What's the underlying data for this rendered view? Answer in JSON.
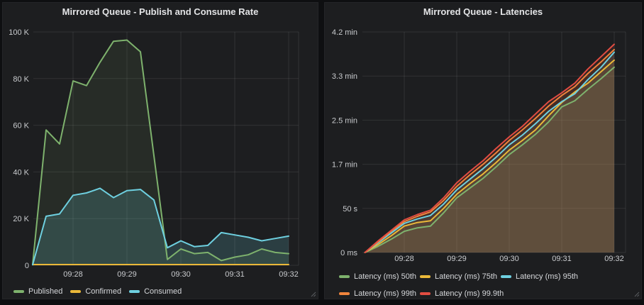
{
  "page": {
    "bg_color": "#0e0f11",
    "panel_bg_color": "#1d1e20",
    "grid_color": "rgba(255,255,255,0.09)",
    "axis_text_color": "#c9cbce",
    "title_text_color": "#e3e4e6",
    "legend_text_color": "#d5d7da"
  },
  "chart_data": [
    {
      "type": "area",
      "title": "Mirrored Queue - Publish and Consume Rate",
      "xlabel": "",
      "ylabel": "",
      "ylim": [
        0,
        100000
      ],
      "y_tick_values": [
        0,
        20000,
        40000,
        60000,
        80000,
        100000
      ],
      "y_tick_labels": [
        "0",
        "20 K",
        "40 K",
        "60 K",
        "80 K",
        "100 K"
      ],
      "x_tick_minutes": [
        28,
        29,
        30,
        31,
        32
      ],
      "x_tick_labels": [
        "09:28",
        "09:29",
        "09:30",
        "09:31",
        "09:32"
      ],
      "x_minutes": [
        27.25,
        27.5,
        27.75,
        28,
        28.25,
        28.5,
        28.75,
        29,
        29.25,
        29.5,
        29.75,
        30,
        30.25,
        30.5,
        30.75,
        31,
        31.25,
        31.5,
        31.75,
        32
      ],
      "grid": true,
      "legend_position": "bottom",
      "series": [
        {
          "name": "Published",
          "color": "#7EB26D",
          "fill_opacity": 0.1,
          "values": [
            300,
            58000,
            52000,
            79000,
            77000,
            87000,
            96000,
            96500,
            91500,
            47000,
            2500,
            7000,
            5000,
            5500,
            2000,
            3500,
            4500,
            7000,
            5500,
            5000
          ]
        },
        {
          "name": "Confirmed",
          "color": "#EAB839",
          "fill_opacity": 0.1,
          "values": [
            300,
            300,
            300,
            300,
            300,
            300,
            300,
            300,
            300,
            300,
            300,
            300,
            300,
            300,
            300,
            300,
            300,
            300,
            300,
            300
          ]
        },
        {
          "name": "Consumed",
          "color": "#6ED0E0",
          "fill_opacity": 0.18,
          "values": [
            200,
            21000,
            22000,
            30000,
            31000,
            33000,
            29000,
            32000,
            32500,
            28000,
            7500,
            10500,
            8000,
            8500,
            14000,
            13000,
            12000,
            10500,
            11500,
            12500
          ]
        }
      ]
    },
    {
      "type": "area",
      "title": "Mirrored Queue - Latencies",
      "xlabel": "",
      "ylabel": "",
      "ylim": [
        0,
        250
      ],
      "y_unit": "seconds",
      "y_tick_values": [
        0,
        50,
        100,
        150,
        200,
        250
      ],
      "y_tick_labels": [
        "0 ms",
        "50 s",
        "1.7 min",
        "2.5 min",
        "3.3 min",
        "4.2 min"
      ],
      "x_tick_minutes": [
        28,
        29,
        30,
        31,
        32
      ],
      "x_tick_labels": [
        "09:28",
        "09:29",
        "09:30",
        "09:31",
        "09:32"
      ],
      "x_minutes": [
        27.25,
        27.5,
        27.75,
        28,
        28.25,
        28.5,
        28.75,
        29,
        29.25,
        29.5,
        29.75,
        30,
        30.25,
        30.5,
        30.75,
        31,
        31.25,
        31.5,
        31.75,
        32
      ],
      "grid": true,
      "legend_position": "bottom",
      "series": [
        {
          "name": "Latency (ms) 50th",
          "color": "#7EB26D",
          "fill_opacity": 0.1,
          "values": [
            0,
            7,
            15,
            24,
            28,
            30,
            45,
            62,
            73,
            84,
            97,
            111,
            122,
            134,
            148,
            165,
            172,
            185,
            197,
            210
          ]
        },
        {
          "name": "Latency (ms) 75th",
          "color": "#EAB839",
          "fill_opacity": 0.1,
          "values": [
            0,
            9,
            19,
            30,
            34,
            36,
            50,
            66,
            78,
            89,
            102,
            116,
            127,
            139,
            155,
            170,
            182,
            192,
            205,
            218
          ]
        },
        {
          "name": "Latency (ms) 95th",
          "color": "#6ED0E0",
          "fill_opacity": 0.1,
          "values": [
            0,
            11,
            22,
            33,
            38,
            42,
            55,
            71,
            83,
            95,
            108,
            122,
            133,
            146,
            160,
            171,
            180,
            196,
            210,
            227
          ]
        },
        {
          "name": "Latency (ms) 99th",
          "color": "#EF843C",
          "fill_opacity": 0.1,
          "values": [
            0,
            12,
            24,
            35,
            41,
            46,
            59,
            75,
            88,
            100,
            113,
            127,
            139,
            152,
            166,
            178,
            188,
            203,
            216,
            230
          ]
        },
        {
          "name": "Latency (ms) 99.9th",
          "color": "#E24D42",
          "fill_opacity": 0.1,
          "values": [
            0,
            13,
            25,
            37,
            43,
            48,
            62,
            79,
            92,
            104,
            118,
            131,
            143,
            157,
            171,
            181,
            192,
            208,
            222,
            236
          ]
        }
      ]
    }
  ]
}
